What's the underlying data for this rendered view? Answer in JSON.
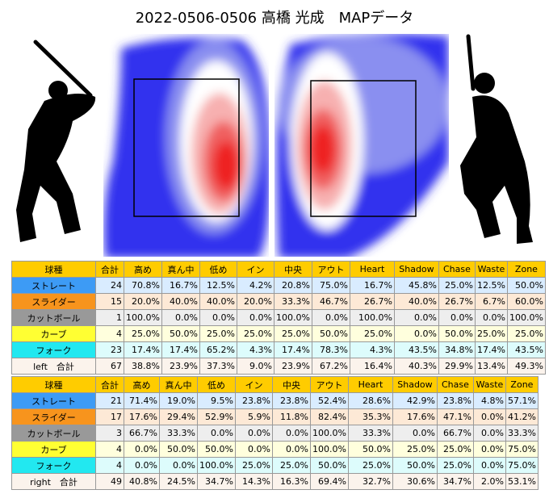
{
  "title": "2022-0506-0506 高橋 光成　MAPデータ",
  "tables": [
    {
      "header": [
        "球種",
        "合計",
        "高め",
        "真ん中",
        "低め",
        "イン",
        "中央",
        "アウト",
        "Heart",
        "Shadow",
        "Chase",
        "Waste",
        "Zone"
      ],
      "rows": [
        [
          "ストレート",
          "24",
          "70.8%",
          "16.7%",
          "12.5%",
          "4.2%",
          "20.8%",
          "75.0%",
          "16.7%",
          "45.8%",
          "25.0%",
          "12.5%",
          "50.0%"
        ],
        [
          "スライダー",
          "15",
          "20.0%",
          "40.0%",
          "40.0%",
          "20.0%",
          "33.3%",
          "46.7%",
          "26.7%",
          "40.0%",
          "26.7%",
          "6.7%",
          "60.0%"
        ],
        [
          "カットボール",
          "1",
          "100.0%",
          "0.0%",
          "0.0%",
          "0.0%",
          "100.0%",
          "0.0%",
          "100.0%",
          "0.0%",
          "0.0%",
          "0.0%",
          "100.0%"
        ],
        [
          "カーブ",
          "4",
          "25.0%",
          "50.0%",
          "25.0%",
          "25.0%",
          "25.0%",
          "50.0%",
          "25.0%",
          "0.0%",
          "50.0%",
          "25.0%",
          "25.0%"
        ],
        [
          "フォーク",
          "23",
          "17.4%",
          "17.4%",
          "65.2%",
          "4.3%",
          "17.4%",
          "78.3%",
          "4.3%",
          "43.5%",
          "34.8%",
          "17.4%",
          "43.5%"
        ],
        [
          "left　合計",
          "67",
          "38.8%",
          "23.9%",
          "37.3%",
          "9.0%",
          "23.9%",
          "67.2%",
          "16.4%",
          "40.3%",
          "29.9%",
          "13.4%",
          "49.3%"
        ]
      ]
    },
    {
      "header": [
        "球種",
        "合計",
        "高め",
        "真ん中",
        "低め",
        "イン",
        "中央",
        "アウト",
        "Heart",
        "Shadow",
        "Chase",
        "Waste",
        "Zone"
      ],
      "rows": [
        [
          "ストレート",
          "21",
          "71.4%",
          "19.0%",
          "9.5%",
          "23.8%",
          "23.8%",
          "52.4%",
          "28.6%",
          "42.9%",
          "23.8%",
          "4.8%",
          "57.1%"
        ],
        [
          "スライダー",
          "17",
          "17.6%",
          "29.4%",
          "52.9%",
          "5.9%",
          "11.8%",
          "82.4%",
          "35.3%",
          "17.6%",
          "47.1%",
          "0.0%",
          "41.2%"
        ],
        [
          "カットボール",
          "3",
          "66.7%",
          "33.3%",
          "0.0%",
          "0.0%",
          "0.0%",
          "100.0%",
          "33.3%",
          "0.0%",
          "66.7%",
          "0.0%",
          "33.3%"
        ],
        [
          "カーブ",
          "4",
          "0.0%",
          "50.0%",
          "50.0%",
          "0.0%",
          "0.0%",
          "100.0%",
          "50.0%",
          "25.0%",
          "25.0%",
          "0.0%",
          "75.0%"
        ],
        [
          "フォーク",
          "4",
          "0.0%",
          "0.0%",
          "100.0%",
          "25.0%",
          "25.0%",
          "50.0%",
          "25.0%",
          "50.0%",
          "25.0%",
          "0.0%",
          "75.0%"
        ],
        [
          "right　合計",
          "49",
          "40.8%",
          "24.5%",
          "34.7%",
          "14.3%",
          "16.3%",
          "69.4%",
          "32.7%",
          "30.6%",
          "34.7%",
          "2.0%",
          "53.1%"
        ]
      ]
    }
  ]
}
